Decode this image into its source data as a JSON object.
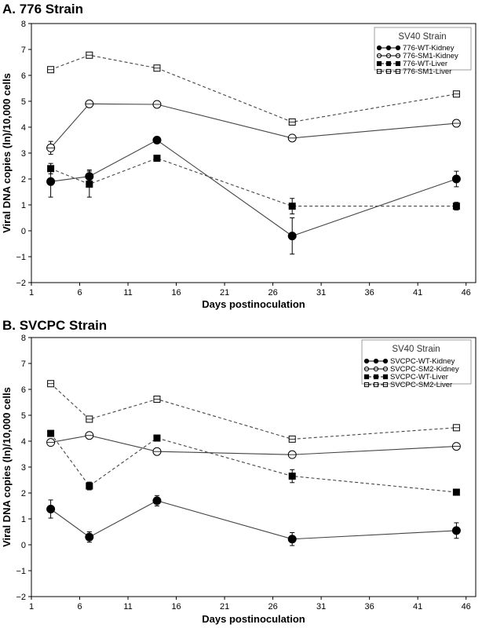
{
  "chart_data": [
    {
      "type": "line",
      "title": "A. 776 Strain",
      "xlabel": "Days postinoculation",
      "ylabel": "Viral DNA copies (ln)/10,000 cells",
      "xlim": [
        1,
        47
      ],
      "ylim": [
        -2,
        8
      ],
      "xticks": [
        1,
        6,
        11,
        16,
        21,
        26,
        31,
        36,
        41,
        46
      ],
      "yticks": [
        -2,
        -1,
        0,
        1,
        2,
        3,
        4,
        5,
        6,
        7,
        8
      ],
      "legend": {
        "title": "SV40 Strain",
        "position": "top-right"
      },
      "x": [
        3,
        7,
        14,
        28,
        45
      ],
      "series": [
        {
          "name": "776-WT-Kidney",
          "values": [
            1.9,
            2.1,
            3.5,
            -0.2,
            2.0
          ],
          "errors": [
            0.6,
            0.25,
            0.05,
            0.7,
            0.3
          ],
          "marker": "filled-circle",
          "dash": "solid"
        },
        {
          "name": "776-SM1-Kidney",
          "values": [
            3.2,
            4.9,
            4.88,
            3.58,
            4.15
          ],
          "errors": [
            0.25,
            0.05,
            0.05,
            0.05,
            0.05
          ],
          "marker": "open-circle",
          "dash": "solid"
        },
        {
          "name": "776-WT-Liver",
          "values": [
            2.4,
            1.8,
            2.8,
            0.95,
            0.95
          ],
          "errors": [
            0.2,
            0.5,
            0.05,
            0.3,
            0.15
          ],
          "marker": "filled-square",
          "dash": "dashed"
        },
        {
          "name": "776-SM1-Liver",
          "values": [
            6.22,
            6.78,
            6.28,
            4.2,
            5.28
          ],
          "errors": [
            0.05,
            0.05,
            0.05,
            0.05,
            0.05
          ],
          "marker": "open-square",
          "dash": "dashed"
        }
      ]
    },
    {
      "type": "line",
      "title": "B. SVCPC Strain",
      "xlabel": "Days postinoculation",
      "ylabel": "Viral DNA copies (ln)/10,000 cells",
      "xlim": [
        1,
        47
      ],
      "ylim": [
        -2,
        8
      ],
      "xticks": [
        1,
        6,
        11,
        16,
        21,
        26,
        31,
        36,
        41,
        46
      ],
      "yticks": [
        -2,
        -1,
        0,
        1,
        2,
        3,
        4,
        5,
        6,
        7,
        8
      ],
      "legend": {
        "title": "SV40 Strain",
        "position": "top-right"
      },
      "x": [
        3,
        7,
        14,
        28,
        45
      ],
      "series": [
        {
          "name": "SVCPC-WT-Kidney",
          "values": [
            1.38,
            0.3,
            1.7,
            0.22,
            0.55
          ],
          "errors": [
            0.35,
            0.2,
            0.2,
            0.25,
            0.3
          ],
          "marker": "filled-circle",
          "dash": "solid"
        },
        {
          "name": "SVCPC-SM2-Kidney",
          "values": [
            3.95,
            4.22,
            3.6,
            3.48,
            3.8
          ],
          "errors": [
            0.05,
            0.05,
            0.05,
            0.05,
            0.05
          ],
          "marker": "open-circle",
          "dash": "solid"
        },
        {
          "name": "SVCPC-WT-Liver",
          "values": [
            4.3,
            2.27,
            4.12,
            2.65,
            2.03
          ],
          "errors": [
            0.05,
            0.15,
            0.05,
            0.25,
            0.1
          ],
          "marker": "filled-square",
          "dash": "dashed"
        },
        {
          "name": "SVCPC-SM2-Liver",
          "values": [
            6.22,
            4.85,
            5.62,
            4.08,
            4.52
          ],
          "errors": [
            0.05,
            0.05,
            0.05,
            0.05,
            0.05
          ],
          "marker": "open-square",
          "dash": "dashed"
        }
      ]
    }
  ]
}
